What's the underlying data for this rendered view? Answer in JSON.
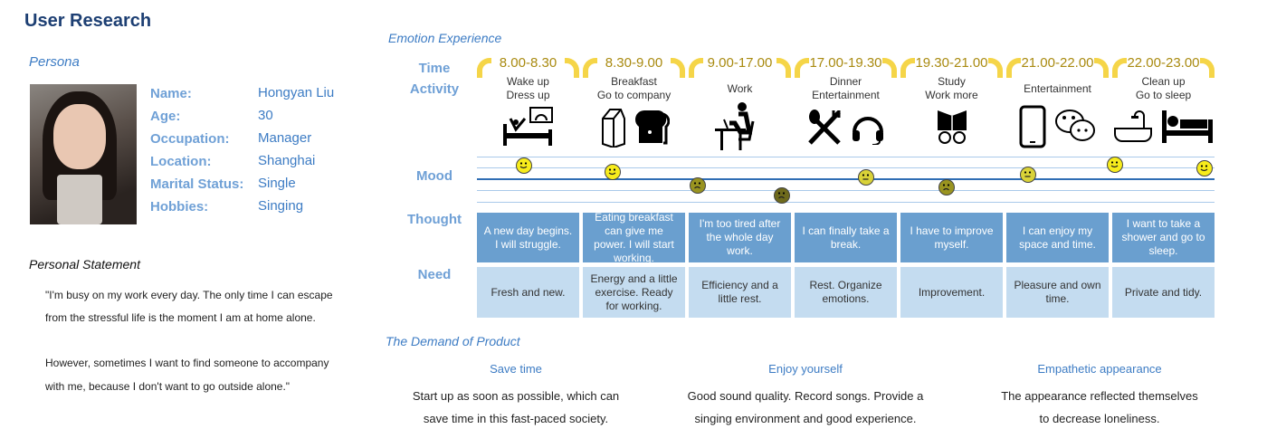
{
  "title": "User Research",
  "persona": {
    "heading": "Persona",
    "fields": [
      {
        "label": "Name:",
        "value": "Hongyan Liu"
      },
      {
        "label": "Age:",
        "value": "30"
      },
      {
        "label": "Occupation:",
        "value": "Manager"
      },
      {
        "label": "Location:",
        "value": "Shanghai"
      },
      {
        "label": "Marital Status:",
        "value": "Single"
      },
      {
        "label": "Hobbies:",
        "value": "Singing"
      }
    ]
  },
  "statement": {
    "heading": "Personal Statement",
    "lines": [
      "\"I'm busy on my work every day. The only time I can escape",
      "from the stressful life is the moment I am at home alone.",
      "However, sometimes I want to find someone to accompany",
      "with me, because I don't want to go outside alone.\""
    ]
  },
  "emotion": {
    "heading": "Emotion Experience",
    "row_labels": {
      "time": "Time",
      "activity": "Activity",
      "mood": "Mood",
      "thought": "Thought",
      "need": "Need"
    },
    "columns": [
      {
        "time": "8.00-8.30",
        "activity": [
          "Wake up",
          "Dress up"
        ],
        "icons": [
          "bed-sunrise-icon"
        ],
        "thought": "A new day begins. I will struggle.",
        "need": "Fresh and new."
      },
      {
        "time": "8.30-9.00",
        "activity": [
          "Breakfast",
          "Go to company"
        ],
        "icons": [
          "milk-carton-icon",
          "bread-icon"
        ],
        "thought": "Eating breakfast can give me power. I will start working.",
        "need": "Energy and a little exercise. Ready for working."
      },
      {
        "time": "9.00-17.00",
        "activity": [
          "Work"
        ],
        "icons": [
          "person-at-laptop-icon"
        ],
        "thought": "I'm too tired after the whole day work.",
        "need": "Efficiency and a little rest."
      },
      {
        "time": "17.00-19.30",
        "activity": [
          "Dinner",
          "Entertainment"
        ],
        "icons": [
          "utensils-icon",
          "headphones-icon"
        ],
        "thought": "I can finally take a break.",
        "need": "Rest. Organize emotions."
      },
      {
        "time": "19.30-21.00",
        "activity": [
          "Study",
          "Work more"
        ],
        "icons": [
          "book-glasses-icon"
        ],
        "thought": "I have to improve myself.",
        "need": "Improvement."
      },
      {
        "time": "21.00-22.00",
        "activity": [
          "Entertainment"
        ],
        "icons": [
          "phone-icon",
          "chat-icon"
        ],
        "thought": "I can enjoy my space and time.",
        "need": "Pleasure and own time."
      },
      {
        "time": "22.00-23.00",
        "activity": [
          "Clean up",
          "Go to sleep"
        ],
        "icons": [
          "bathtub-icon",
          "bed-icon"
        ],
        "thought": "I want to take a shower and go to sleep.",
        "need": "Private and tidy."
      }
    ],
    "mood_levels": [
      1.1,
      0.6,
      -0.6,
      -1.5,
      0.1,
      -0.8,
      0.3,
      1.2,
      0.9
    ],
    "colors": {
      "happy": "#f7ec1c",
      "neutral": "#d9d238",
      "sad": "#9a9420",
      "very_sad": "#6e6a1c",
      "thought_bg": "#6a9fcf",
      "need_bg": "#c4dcf0",
      "time_bracket": "#f5d548"
    }
  },
  "demand": {
    "heading": "The Demand of Product",
    "items": [
      {
        "title": "Save time",
        "lines": [
          "Start up as soon as possible, which can",
          "save time in this fast-paced society."
        ]
      },
      {
        "title": "Enjoy yourself",
        "lines": [
          "Good sound quality. Record songs. Provide a",
          "singing environment and good experience."
        ]
      },
      {
        "title": "Empathetic appearance",
        "lines": [
          "The appearance reflected themselves",
          "to decrease loneliness."
        ]
      }
    ]
  }
}
